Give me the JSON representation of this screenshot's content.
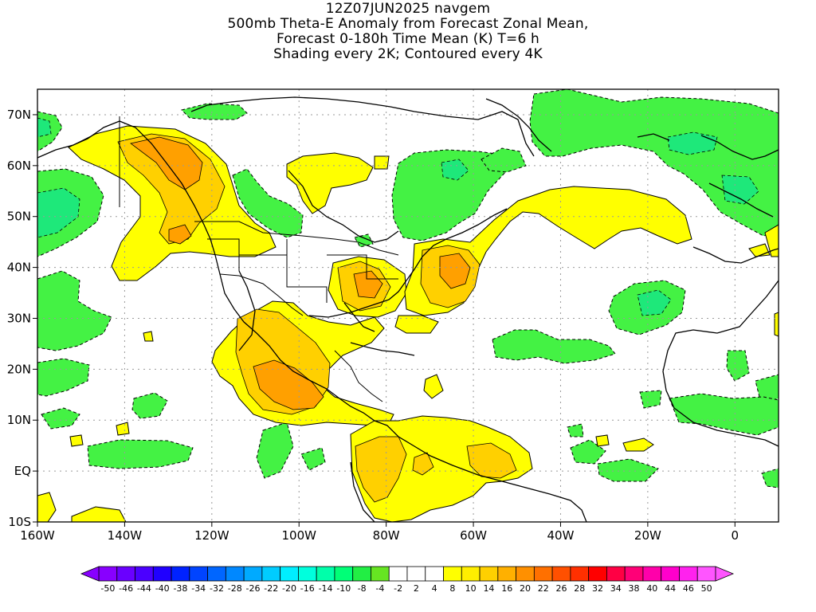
{
  "title": {
    "lines": [
      "12Z07JUN2025 navgem",
      "500mb Theta-E Anomaly from Forecast Zonal Mean,",
      "Forecast 0-180h Time Mean (K) T=6 h",
      "Shading every 2K; Contoured every 4K"
    ]
  },
  "map": {
    "type": "filled-contour map",
    "background_color": "#ffffff",
    "grid": "dotted lat/lon every 20° lon / 10° lat",
    "x_ticks": [
      "160W",
      "140W",
      "120W",
      "100W",
      "80W",
      "60W",
      "40W",
      "20W",
      "0"
    ],
    "y_ticks": [
      "70N",
      "60N",
      "50N",
      "40N",
      "30N",
      "20N",
      "10N",
      "EQ",
      "10S"
    ]
  },
  "colorbar": {
    "labels": [
      "-50",
      "-46",
      "-44",
      "-40",
      "-38",
      "-34",
      "-32",
      "-28",
      "-26",
      "-22",
      "-20",
      "-16",
      "-14",
      "-10",
      "-8",
      "-4",
      "-2",
      "2",
      "4",
      "8",
      "10",
      "14",
      "16",
      "20",
      "22",
      "26",
      "28",
      "32",
      "34",
      "38",
      "40",
      "44",
      "46",
      "50"
    ],
    "colors": [
      "#8800ff",
      "#6a00ff",
      "#4b00ff",
      "#2000ff",
      "#0022ff",
      "#0044ff",
      "#0066ff",
      "#0088ff",
      "#00aaff",
      "#00ccff",
      "#00eeff",
      "#00ffdd",
      "#00ffaa",
      "#00ff77",
      "#22ee44",
      "#66e522",
      "#ffffff",
      "#ffffff",
      "#ffffff",
      "#ffff00",
      "#ffee00",
      "#ffd000",
      "#ffb000",
      "#ff9000",
      "#ff7000",
      "#ff5000",
      "#ff3000",
      "#ff0000",
      "#ff0044",
      "#ff0077",
      "#ff00aa",
      "#ff00cc",
      "#ff22ee",
      "#ff55ff"
    ]
  }
}
